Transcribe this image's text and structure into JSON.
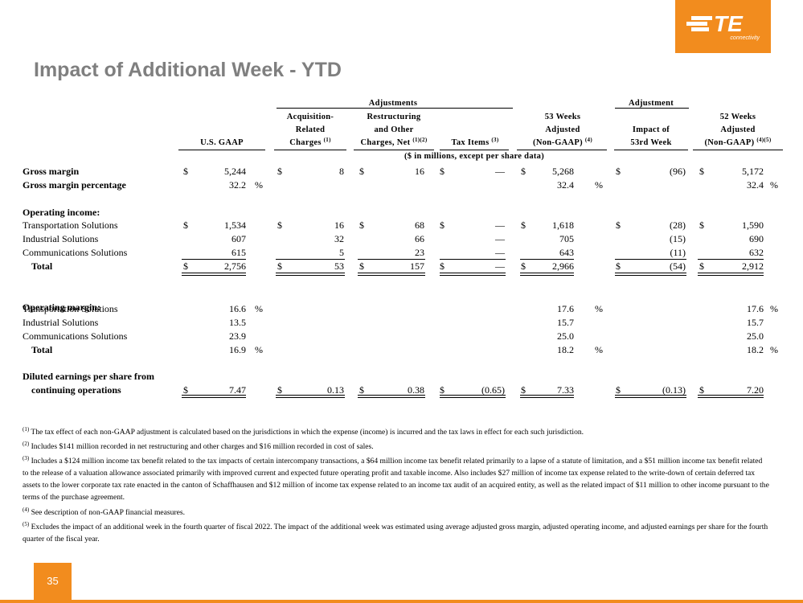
{
  "brand": {
    "logo_text": "TE",
    "logo_sub": "connectivity",
    "color": "#f28c1e"
  },
  "title": "Impact of Additional Week - YTD",
  "headers": {
    "adjustments_group": "Adjustments",
    "adjustment_group": "Adjustment",
    "usgaap": "U.S. GAAP",
    "acq_l1": "Acquisition-",
    "acq_l2": "Related",
    "acq_l3": "Charges",
    "acq_note": "(1)",
    "restr_l1": "Restructuring",
    "restr_l2": "and Other",
    "restr_l3": "Charges, Net",
    "restr_note": "(1)(2)",
    "tax": "Tax Items",
    "tax_note": "(3)",
    "w53_l1": "53 Weeks",
    "w53_l2": "Adjusted",
    "w53_l3": "(Non-GAAP)",
    "w53_note": "(4)",
    "impact_l1": "Impact of",
    "impact_l2": "53rd Week",
    "w52_l1": "52 Weeks",
    "w52_l2": "Adjusted",
    "w52_l3": "(Non-GAAP)",
    "w52_note": "(4)(5)",
    "units": "($ in millions, except per share data)"
  },
  "rows": [
    {
      "label": "Gross margin",
      "style": "b",
      "cells": [
        "$",
        "5,244",
        "$",
        "8",
        "$",
        "16",
        "$",
        "—",
        "$",
        "5,268",
        "$",
        "(96)",
        "$",
        "5,172"
      ]
    },
    {
      "label": "Gross margin percentage",
      "style": "b",
      "cells": [
        "",
        "32.2",
        "",
        "",
        "",
        "",
        "",
        "",
        "",
        "32.4",
        "",
        "",
        "",
        "32.4"
      ],
      "pct": [
        "%",
        "%",
        "%"
      ]
    },
    {
      "label": "Operating income:",
      "style": "b",
      "cells": []
    },
    {
      "label": "Transportation Solutions",
      "style": "",
      "cells": [
        "$",
        "1,534",
        "$",
        "16",
        "$",
        "68",
        "$",
        "—",
        "$",
        "1,618",
        "$",
        "(28)",
        "$",
        "1,590"
      ]
    },
    {
      "label": "Industrial Solutions",
      "style": "",
      "cells": [
        "",
        "607",
        "",
        "32",
        "",
        "66",
        "",
        "—",
        "",
        "705",
        "",
        "(15)",
        "",
        "690"
      ]
    },
    {
      "label": "Communications Solutions",
      "style": "",
      "cells": [
        "",
        "615",
        "",
        "5",
        "",
        "23",
        "",
        "—",
        "",
        "643",
        "",
        "(11)",
        "",
        "632"
      ]
    },
    {
      "label": "Total",
      "style": "b ind",
      "cells": [
        "$",
        "2,756",
        "$",
        "53",
        "$",
        "157",
        "$",
        "—",
        "$",
        "2,966",
        "$",
        "(54)",
        "$",
        "2,912"
      ]
    },
    {
      "label": "Operating margin:",
      "style": "b",
      "cells": []
    },
    {
      "label": "Transportation Solutions",
      "style": "",
      "cells": [
        "",
        "16.6",
        "",
        "",
        "",
        "",
        "",
        "",
        "",
        "17.6",
        "",
        "",
        "",
        "17.6"
      ],
      "pct": [
        "%",
        "%",
        "%"
      ]
    },
    {
      "label": "Industrial Solutions",
      "style": "",
      "cells": [
        "",
        "13.5",
        "",
        "",
        "",
        "",
        "",
        "",
        "",
        "15.7",
        "",
        "",
        "",
        "15.7"
      ]
    },
    {
      "label": "Communications Solutions",
      "style": "",
      "cells": [
        "",
        "23.9",
        "",
        "",
        "",
        "",
        "",
        "",
        "",
        "25.0",
        "",
        "",
        "",
        "25.0"
      ]
    },
    {
      "label": "Total",
      "style": "b ind",
      "cells": [
        "",
        "16.9",
        "",
        "",
        "",
        "",
        "",
        "",
        "",
        "18.2",
        "",
        "",
        "",
        "18.2"
      ],
      "pct": [
        "%",
        "%",
        "%"
      ]
    },
    {
      "label": "Diluted earnings per share from",
      "style": "b",
      "cells": []
    },
    {
      "label": "continuing operations",
      "style": "b ind",
      "cells": [
        "$",
        "7.47",
        "$",
        "0.13",
        "$",
        "0.38",
        "$",
        "(0.65)",
        "$",
        "7.33",
        "$",
        "(0.13)",
        "$",
        "7.20"
      ]
    }
  ],
  "footnotes": [
    {
      "mark": "(1)",
      "text": "The tax effect of each non-GAAP adjustment is calculated based on the jurisdictions in which the expense (income) is incurred and the tax laws in effect for each such jurisdiction."
    },
    {
      "mark": "(2)",
      "text": "Includes $141 million recorded in net restructuring and other charges and $16 million recorded in cost of sales."
    },
    {
      "mark": "(3)",
      "text": "Includes a $124 million income tax benefit related to the tax impacts of certain intercompany transactions, a $64 million income tax benefit related primarily to a lapse of a statute of limitation, and a $51 million income tax benefit related to the release of a valuation allowance associated primarily with improved current and expected future operating profit and taxable income. Also includes $27 million of income tax expense related to the write-down of certain deferred tax assets to the lower corporate tax rate enacted in the canton of Schaffhausen and $12 million of income tax expense related to an income tax audit of an acquired entity, as well as the related impact of $11 million to other income pursuant to the terms of the purchase agreement."
    },
    {
      "mark": "(4)",
      "text": "See description of non-GAAP financial measures."
    },
    {
      "mark": "(5)",
      "text": "Excludes the impact of an additional week in the fourth quarter of fiscal 2022. The impact of the additional week was estimated using average adjusted gross margin, adjusted operating income, and adjusted earnings per share for the fourth quarter of the fiscal year."
    }
  ],
  "page_number": "35"
}
